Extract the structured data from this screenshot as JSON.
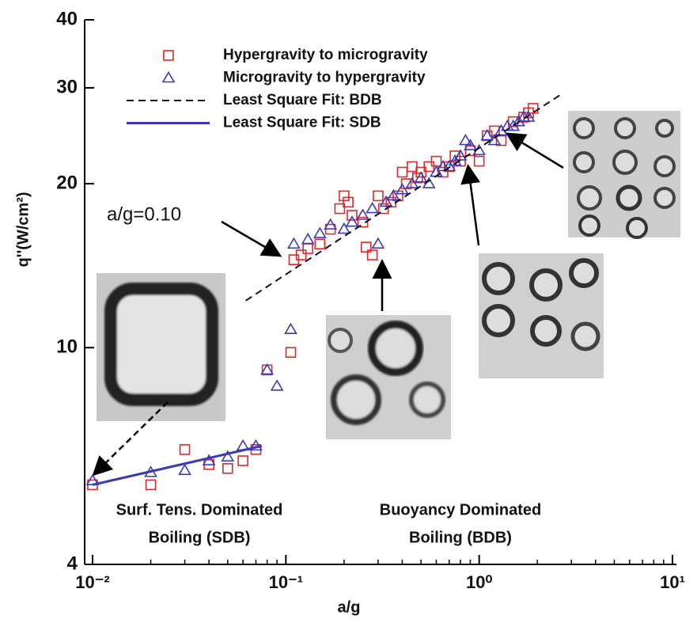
{
  "chart_data": {
    "type": "scatter",
    "xlabel": "a/g",
    "ylabel": "q''(W/cm²)",
    "log_x": true,
    "log_y": true,
    "xlim": [
      0.01,
      10
    ],
    "ylim": [
      4,
      40
    ],
    "xticks": [
      {
        "value": 0.01,
        "label": "10⁻²"
      },
      {
        "value": 0.1,
        "label": "10⁻¹"
      },
      {
        "value": 1,
        "label": "10⁰"
      },
      {
        "value": 10,
        "label": "10¹"
      }
    ],
    "yticks": [
      4,
      10,
      20,
      30,
      40
    ],
    "series": [
      {
        "name": "Hypergravity to microgravity",
        "marker": "square",
        "color": "#e02828",
        "x": [
          0.01,
          0.02,
          0.03,
          0.04,
          0.05,
          0.06,
          0.07,
          0.08,
          0.106,
          0.11,
          0.12,
          0.13,
          0.15,
          0.17,
          0.19,
          0.2,
          0.21,
          0.22,
          0.25,
          0.26,
          0.28,
          0.3,
          0.32,
          0.35,
          0.38,
          0.4,
          0.42,
          0.45,
          0.48,
          0.5,
          0.55,
          0.6,
          0.65,
          0.7,
          0.75,
          0.8,
          0.9,
          1.0,
          1.1,
          1.2,
          1.3,
          1.5,
          1.7,
          1.8,
          1.9
        ],
        "values": [
          5.6,
          5.6,
          6.5,
          6.1,
          6.0,
          6.2,
          6.5,
          9.1,
          9.8,
          14.5,
          14.8,
          15.2,
          15.5,
          16.5,
          18.0,
          19.0,
          18.5,
          17.5,
          17.0,
          15.3,
          14.8,
          19.0,
          18.0,
          18.5,
          19.0,
          21.0,
          20.0,
          21.5,
          20.5,
          21.0,
          21.5,
          22.0,
          21.0,
          21.5,
          22.5,
          22.0,
          23.0,
          22.0,
          24.5,
          25.0,
          24.0,
          26.0,
          26.5,
          27.0,
          27.5
        ]
      },
      {
        "name": "Microgravity to hypergravity",
        "marker": "triangle",
        "color": "#3a3ab8",
        "x": [
          0.01,
          0.02,
          0.03,
          0.04,
          0.05,
          0.06,
          0.07,
          0.08,
          0.09,
          0.106,
          0.11,
          0.13,
          0.15,
          0.17,
          0.2,
          0.22,
          0.25,
          0.28,
          0.3,
          0.33,
          0.36,
          0.4,
          0.45,
          0.5,
          0.55,
          0.6,
          0.65,
          0.7,
          0.75,
          0.8,
          0.85,
          0.9,
          1.0,
          1.1,
          1.2,
          1.3,
          1.4,
          1.5,
          1.6,
          1.7,
          1.8
        ],
        "values": [
          5.7,
          5.9,
          5.95,
          6.2,
          6.3,
          6.6,
          6.6,
          9.1,
          8.5,
          10.8,
          15.5,
          15.8,
          16.2,
          16.8,
          16.5,
          17.0,
          17.5,
          18.0,
          15.5,
          18.5,
          19.0,
          19.5,
          20.0,
          20.5,
          20.0,
          21.0,
          21.5,
          21.5,
          22.0,
          22.5,
          24.0,
          23.5,
          23.0,
          24.5,
          24.0,
          25.0,
          25.5,
          25.5,
          26.0,
          26.5,
          26.5
        ]
      },
      {
        "name": "Least Square Fit: BDB",
        "marker": "dashed-line",
        "color": "#111111",
        "x": [
          0.062,
          2.7
        ],
        "values": [
          12.2,
          29.3
        ]
      },
      {
        "name": "Least Square Fit: SDB",
        "marker": "line",
        "color": "#3a3ab8",
        "x": [
          0.01,
          0.075
        ],
        "values": [
          5.6,
          6.6
        ]
      }
    ],
    "annotations": [
      "a/g=0.10",
      "Surf. Tens. Dominated",
      "Boiling (SDB)",
      "Buoyancy Dominated",
      "Boiling (BDB)"
    ]
  }
}
